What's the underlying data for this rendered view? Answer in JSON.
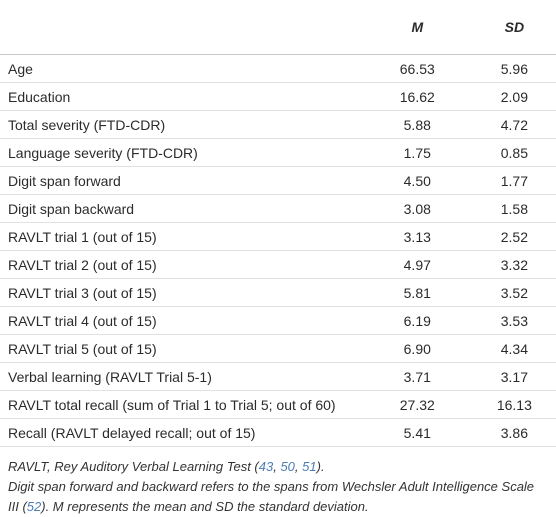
{
  "table": {
    "columns": [
      "M",
      "SD"
    ],
    "rows": [
      [
        "Age",
        "66.53",
        "5.96"
      ],
      [
        "Education",
        "16.62",
        "2.09"
      ],
      [
        "Total severity (FTD-CDR)",
        "5.88",
        "4.72"
      ],
      [
        "Language severity (FTD-CDR)",
        "1.75",
        "0.85"
      ],
      [
        "Digit span forward",
        "4.50",
        "1.77"
      ],
      [
        "Digit span backward",
        "3.08",
        "1.58"
      ],
      [
        "RAVLT trial 1 (out of 15)",
        "3.13",
        "2.52"
      ],
      [
        "RAVLT trial 2 (out of 15)",
        "4.97",
        "3.32"
      ],
      [
        "RAVLT trial 3 (out of 15)",
        "5.81",
        "3.52"
      ],
      [
        "RAVLT trial 4 (out of 15)",
        "6.19",
        "3.53"
      ],
      [
        "RAVLT trial 5 (out of 15)",
        "6.90",
        "4.34"
      ],
      [
        "Verbal learning (RAVLT Trial 5-1)",
        "3.71",
        "3.17"
      ],
      [
        "RAVLT total recall (sum of Trial 1 to Trial 5; out of 60)",
        "27.32",
        "16.13"
      ],
      [
        "Recall (RAVLT delayed recall; out of 15)",
        "5.41",
        "3.86"
      ]
    ]
  },
  "notes": [
    [
      "RAVLT, Rey Auditory Verbal Learning Test (",
      "43",
      ", ",
      "50",
      ", ",
      "51",
      ")."
    ],
    [
      "Digit span forward and backward refers to the spans from Wechsler Adult Intelligence Scale III (",
      "52",
      "). M represents the mean and SD the standard deviation."
    ]
  ]
}
